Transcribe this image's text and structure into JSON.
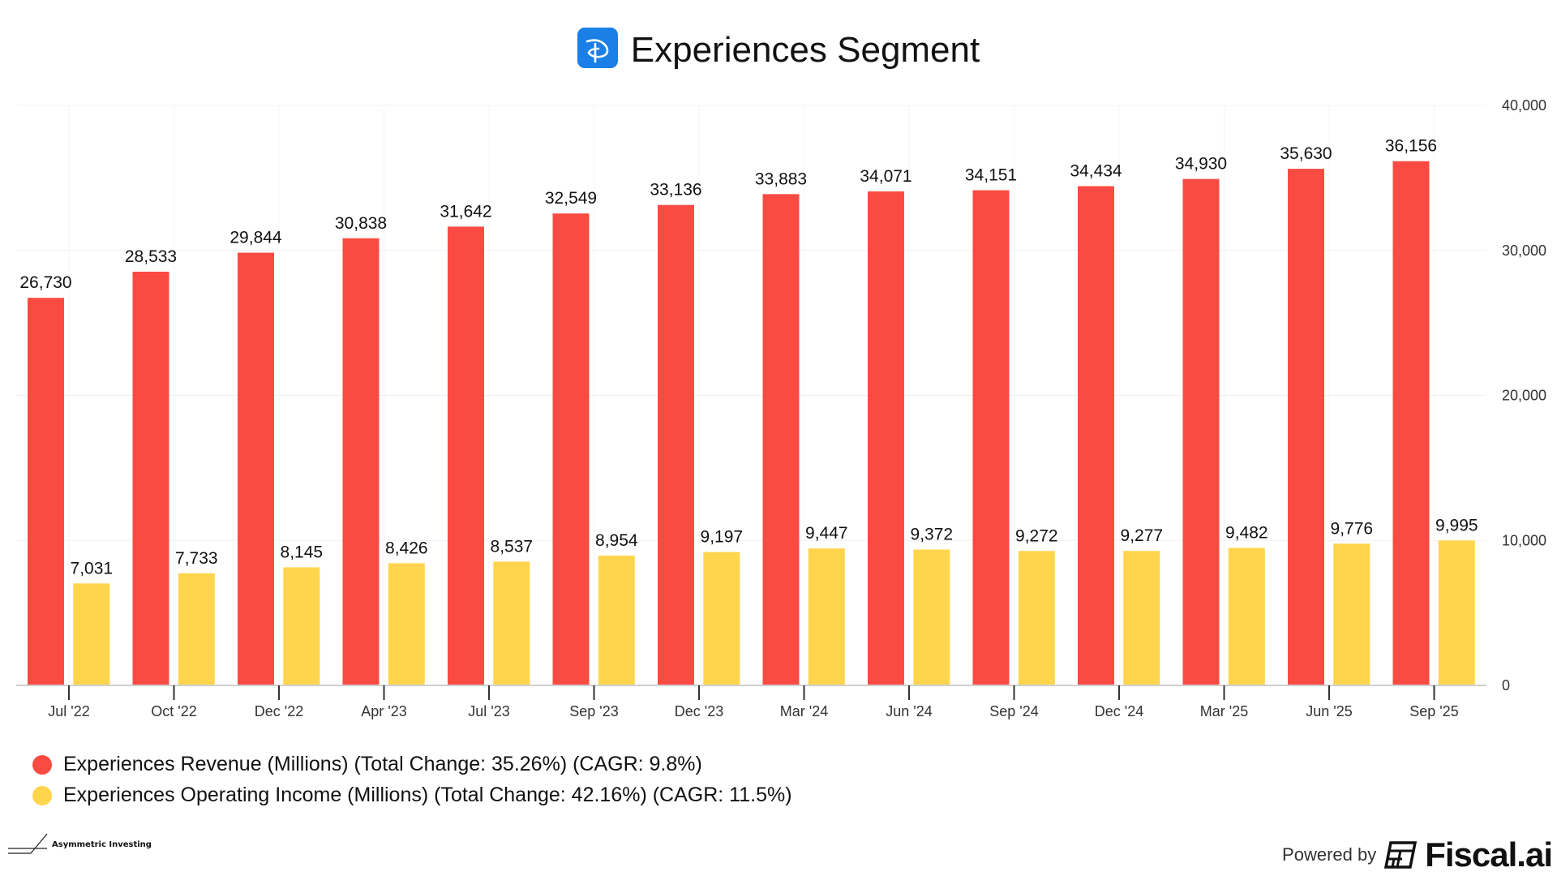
{
  "header": {
    "title": "Experiences Segment",
    "logo_icon": "disney-d-icon",
    "logo_color": "#1a7fe6"
  },
  "chart_data": {
    "type": "bar",
    "categories": [
      "Jul '22",
      "Oct '22",
      "Dec '22",
      "Apr '23",
      "Jul '23",
      "Sep '23",
      "Dec '23",
      "Mar '24",
      "Jun '24",
      "Sep '24",
      "Dec '24",
      "Mar '25",
      "Jun '25",
      "Sep '25"
    ],
    "series": [
      {
        "name": "Experiences Revenue (Millions) (Total Change: 35.26%) (CAGR: 9.8%)",
        "color": "#fa4b42",
        "values": [
          26730,
          28533,
          29844,
          30838,
          31642,
          32549,
          33136,
          33883,
          34071,
          34151,
          34434,
          34930,
          35630,
          36156
        ]
      },
      {
        "name": "Experiences Operating Income (Millions) (Total Change: 42.16%) (CAGR: 11.5%)",
        "color": "#ffd54d",
        "values": [
          7031,
          7733,
          8145,
          8426,
          8537,
          8954,
          9197,
          9447,
          9372,
          9272,
          9277,
          9482,
          9776,
          9995
        ]
      }
    ],
    "yaxis": {
      "position": "right",
      "ylim": [
        0,
        40000
      ],
      "ticks": [
        0,
        10000,
        20000,
        30000,
        40000
      ],
      "tick_labels": [
        "0",
        "10,000",
        "20,000",
        "30,000",
        "40,000"
      ]
    },
    "grid": true,
    "data_labels": true,
    "legend_placement": "bottom-left"
  },
  "footer": {
    "left_brand": "Asymmetric Investing",
    "powered_by": "Powered by",
    "right_brand": "Fiscal.ai"
  }
}
